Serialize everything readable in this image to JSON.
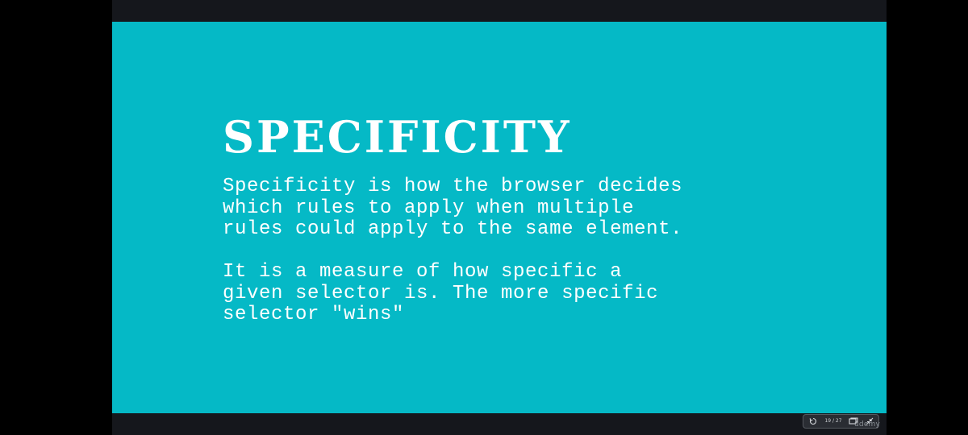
{
  "slide": {
    "title": "SPECIFICITY",
    "paragraphs": [
      {
        "lines": [
          "Specificity is how the browser decides",
          "which rules to apply when multiple",
          "rules could apply to the same element."
        ]
      },
      {
        "lines": [
          "It is a measure of how specific a",
          "given selector is. The more specific",
          "selector \"wins\""
        ]
      }
    ],
    "background_color": "#05b9c6",
    "text_color": "#ffffff"
  },
  "controls": {
    "page_indicator": "19 / 27",
    "icons": [
      "reset-icon",
      "screen-icon",
      "collapse-icon"
    ]
  },
  "watermark": "udemy"
}
